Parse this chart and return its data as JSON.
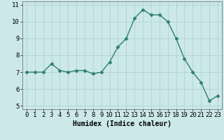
{
  "x": [
    0,
    1,
    2,
    3,
    4,
    5,
    6,
    7,
    8,
    9,
    10,
    11,
    12,
    13,
    14,
    15,
    16,
    17,
    18,
    19,
    20,
    21,
    22,
    23
  ],
  "y": [
    7.0,
    7.0,
    7.0,
    7.5,
    7.1,
    7.0,
    7.1,
    7.1,
    6.9,
    7.0,
    7.6,
    8.5,
    9.0,
    10.2,
    10.7,
    10.4,
    10.4,
    10.0,
    9.0,
    7.8,
    7.0,
    6.4,
    5.3,
    5.6
  ],
  "line_color": "#2d7f6e",
  "marker": "D",
  "marker_size": 2.5,
  "bg_color": "#cce8e8",
  "grid_color": "#aacfcf",
  "xlabel": "Humidex (Indice chaleur)",
  "xlim": [
    -0.5,
    23.5
  ],
  "ylim": [
    4.8,
    11.2
  ],
  "yticks": [
    5,
    6,
    7,
    8,
    9,
    10,
    11
  ],
  "xticks": [
    0,
    1,
    2,
    3,
    4,
    5,
    6,
    7,
    8,
    9,
    10,
    11,
    12,
    13,
    14,
    15,
    16,
    17,
    18,
    19,
    20,
    21,
    22,
    23
  ],
  "label_fontsize": 7,
  "tick_fontsize": 6.5
}
